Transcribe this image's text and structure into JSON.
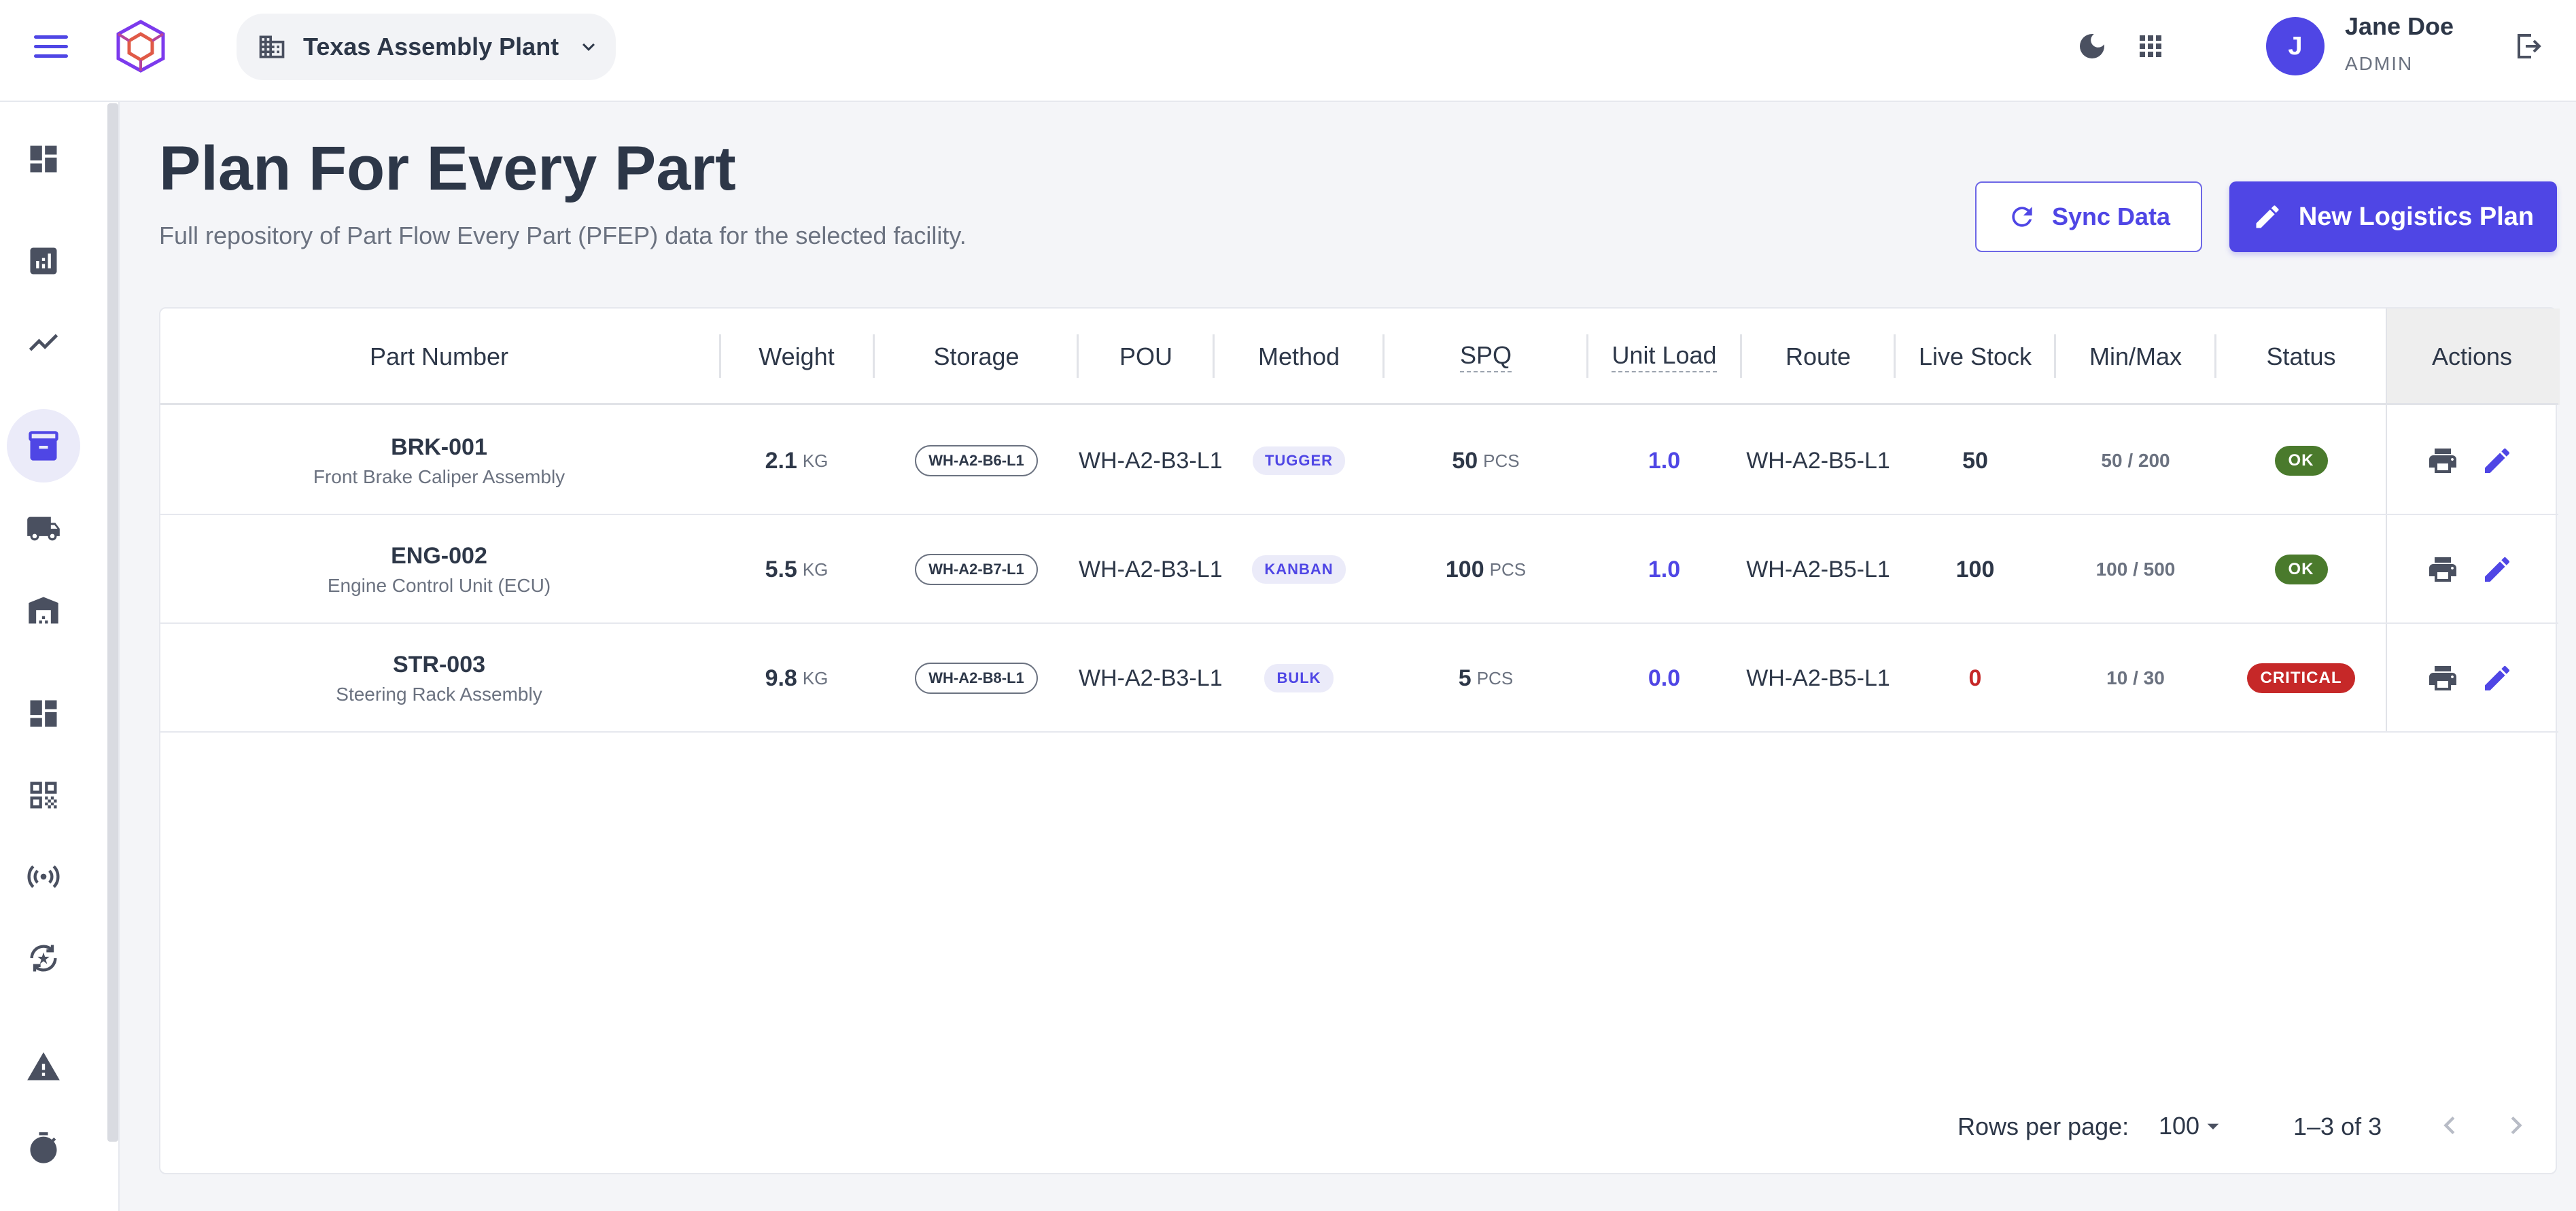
{
  "header": {
    "facility_label": "Texas Assembly Plant",
    "user": {
      "initial": "J",
      "name": "Jane Doe",
      "role": "ADMIN"
    }
  },
  "page": {
    "title": "Plan For Every Part",
    "subtitle": "Full repository of Part Flow Every Part (PFEP) data for the selected facility.",
    "sync_label": "Sync Data",
    "new_label": "New Logistics Plan"
  },
  "table": {
    "columns": [
      "Part Number",
      "Weight",
      "Storage",
      "POU",
      "Method",
      "SPQ",
      "Unit Load",
      "Route",
      "Live Stock",
      "Min/Max",
      "Status",
      "Actions"
    ],
    "rows": [
      {
        "part": "BRK-001",
        "desc": "Front Brake Caliper Assembly",
        "weight": "2.1",
        "weight_unit": "KG",
        "storage": "WH-A2-B6-L1",
        "pou": "WH-A2-B3-L1",
        "method": "TUGGER",
        "spq": "50",
        "spq_unit": "PCS",
        "unit_load": "1.0",
        "route": "WH-A2-B5-L1",
        "stock": "50",
        "minmax": "50 / 200",
        "status": "OK"
      },
      {
        "part": "ENG-002",
        "desc": "Engine Control Unit (ECU)",
        "weight": "5.5",
        "weight_unit": "KG",
        "storage": "WH-A2-B7-L1",
        "pou": "WH-A2-B3-L1",
        "method": "KANBAN",
        "spq": "100",
        "spq_unit": "PCS",
        "unit_load": "1.0",
        "route": "WH-A2-B5-L1",
        "stock": "100",
        "minmax": "100 / 500",
        "status": "OK"
      },
      {
        "part": "STR-003",
        "desc": "Steering Rack Assembly",
        "weight": "9.8",
        "weight_unit": "KG",
        "storage": "WH-A2-B8-L1",
        "pou": "WH-A2-B3-L1",
        "method": "BULK",
        "spq": "5",
        "spq_unit": "PCS",
        "unit_load": "0.0",
        "route": "WH-A2-B5-L1",
        "stock": "0",
        "minmax": "10 / 30",
        "status": "CRITICAL"
      }
    ]
  },
  "pagination": {
    "rows_per_page_label": "Rows per page:",
    "rows_per_page": "100",
    "range": "1–3 of 3"
  },
  "colors": {
    "accent": "#4f46e5",
    "ok": "#4a7a2c",
    "critical": "#c62828",
    "stock_zero": "#c62828"
  },
  "icons": {
    "sidebar": [
      "dashboard-icon",
      "analytics-icon",
      "trending-icon",
      "inventory-icon",
      "truck-icon",
      "warehouse-icon",
      "dashboard-alt-icon",
      "qr-code-icon",
      "signal-icon",
      "cycle-icon",
      "warning-icon",
      "timer-icon"
    ]
  }
}
